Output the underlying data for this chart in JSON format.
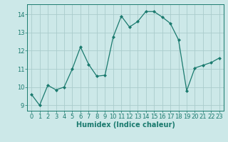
{
  "x": [
    0,
    1,
    2,
    3,
    4,
    5,
    6,
    7,
    8,
    9,
    10,
    11,
    12,
    13,
    14,
    15,
    16,
    17,
    18,
    19,
    20,
    21,
    22,
    23
  ],
  "y": [
    9.6,
    9.0,
    10.1,
    9.85,
    10.0,
    11.0,
    12.2,
    11.25,
    10.6,
    10.65,
    12.75,
    13.9,
    13.3,
    13.6,
    14.15,
    14.15,
    13.85,
    13.5,
    12.6,
    9.8,
    11.05,
    11.2,
    11.35,
    11.6
  ],
  "line_color": "#1a7a6e",
  "marker": "D",
  "marker_size": 2.0,
  "bg_color": "#cce8e8",
  "grid_color": "#aacccc",
  "xlabel": "Humidex (Indice chaleur)",
  "ylim": [
    8.7,
    14.55
  ],
  "xlim": [
    -0.5,
    23.5
  ],
  "yticks": [
    9,
    10,
    11,
    12,
    13,
    14
  ],
  "xticks": [
    0,
    1,
    2,
    3,
    4,
    5,
    6,
    7,
    8,
    9,
    10,
    11,
    12,
    13,
    14,
    15,
    16,
    17,
    18,
    19,
    20,
    21,
    22,
    23
  ],
  "tick_color": "#1a7a6e",
  "tick_fontsize": 6.0,
  "label_fontsize": 7.0,
  "linewidth": 0.9
}
